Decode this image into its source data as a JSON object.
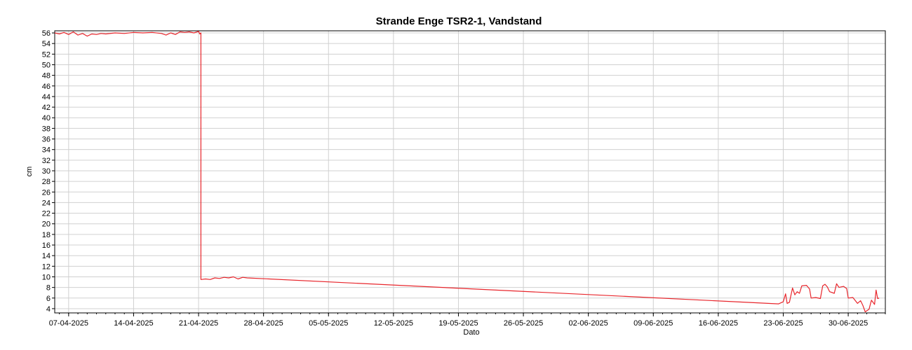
{
  "chart_data": {
    "type": "line",
    "title": "Strande Enge TSR2-1, Vandstand",
    "xlabel": "Dato",
    "ylabel": "cm",
    "x_tick_labels": [
      "07-04-2025",
      "14-04-2025",
      "21-04-2025",
      "28-04-2025",
      "05-05-2025",
      "12-05-2025",
      "19-05-2025",
      "26-05-2025",
      "02-06-2025",
      "09-06-2025",
      "16-06-2025",
      "23-06-2025",
      "30-06-2025"
    ],
    "y_tick_labels": [
      "4",
      "6",
      "8",
      "10",
      "12",
      "14",
      "16",
      "18",
      "20",
      "22",
      "24",
      "26",
      "28",
      "30",
      "32",
      "34",
      "36",
      "38",
      "40",
      "42",
      "44",
      "46",
      "48",
      "50",
      "52",
      "54",
      "56"
    ],
    "ylim": [
      3.2,
      56.4
    ],
    "xlim": [
      "2025-04-05 12:00",
      "2025-07-04 00:00"
    ],
    "grid": true,
    "series": [
      {
        "color": "#e8262c",
        "points": [
          [
            "2025-04-05 12:00",
            56.0
          ],
          [
            "2025-04-06 00:00",
            55.8
          ],
          [
            "2025-04-06 12:00",
            56.1
          ],
          [
            "2025-04-07 00:00",
            55.7
          ],
          [
            "2025-04-07 12:00",
            56.2
          ],
          [
            "2025-04-08 00:00",
            55.6
          ],
          [
            "2025-04-08 12:00",
            55.9
          ],
          [
            "2025-04-09 00:00",
            55.4
          ],
          [
            "2025-04-09 12:00",
            55.8
          ],
          [
            "2025-04-10 00:00",
            55.7
          ],
          [
            "2025-04-10 12:00",
            55.9
          ],
          [
            "2025-04-11 00:00",
            55.8
          ],
          [
            "2025-04-12 00:00",
            56.0
          ],
          [
            "2025-04-13 00:00",
            55.9
          ],
          [
            "2025-04-14 00:00",
            56.1
          ],
          [
            "2025-04-15 00:00",
            56.0
          ],
          [
            "2025-04-16 00:00",
            56.1
          ],
          [
            "2025-04-17 00:00",
            55.9
          ],
          [
            "2025-04-17 12:00",
            55.6
          ],
          [
            "2025-04-18 00:00",
            56.0
          ],
          [
            "2025-04-18 12:00",
            55.7
          ],
          [
            "2025-04-19 00:00",
            56.2
          ],
          [
            "2025-04-19 12:00",
            56.1
          ],
          [
            "2025-04-20 00:00",
            56.2
          ],
          [
            "2025-04-20 12:00",
            56.0
          ],
          [
            "2025-04-21 00:00",
            56.3
          ],
          [
            "2025-04-21 03:00",
            55.8
          ],
          [
            "2025-04-21 06:00",
            56.0
          ],
          [
            "2025-04-21 06:00",
            9.5
          ],
          [
            "2025-04-21 18:00",
            9.6
          ],
          [
            "2025-04-22 06:00",
            9.5
          ],
          [
            "2025-04-22 18:00",
            9.8
          ],
          [
            "2025-04-23 06:00",
            9.7
          ],
          [
            "2025-04-23 18:00",
            9.9
          ],
          [
            "2025-04-24 06:00",
            9.8
          ],
          [
            "2025-04-24 18:00",
            10.0
          ],
          [
            "2025-04-25 06:00",
            9.6
          ],
          [
            "2025-04-25 18:00",
            9.9
          ],
          [
            "2025-04-26 06:00",
            9.8
          ],
          [
            "2025-06-22 12:00",
            4.9
          ],
          [
            "2025-06-23 00:00",
            5.3
          ],
          [
            "2025-06-23 06:00",
            6.8
          ],
          [
            "2025-06-23 10:00",
            5.0
          ],
          [
            "2025-06-23 16:00",
            5.2
          ],
          [
            "2025-06-24 00:00",
            7.9
          ],
          [
            "2025-06-24 06:00",
            6.6
          ],
          [
            "2025-06-24 12:00",
            7.2
          ],
          [
            "2025-06-24 18:00",
            6.9
          ],
          [
            "2025-06-25 00:00",
            8.3
          ],
          [
            "2025-06-25 12:00",
            8.4
          ],
          [
            "2025-06-25 20:00",
            7.7
          ],
          [
            "2025-06-26 00:00",
            6.0
          ],
          [
            "2025-06-26 12:00",
            6.1
          ],
          [
            "2025-06-27 00:00",
            5.9
          ],
          [
            "2025-06-27 06:00",
            8.3
          ],
          [
            "2025-06-27 12:00",
            8.6
          ],
          [
            "2025-06-27 18:00",
            8.1
          ],
          [
            "2025-06-28 00:00",
            7.2
          ],
          [
            "2025-06-28 12:00",
            6.9
          ],
          [
            "2025-06-28 18:00",
            8.7
          ],
          [
            "2025-06-29 00:00",
            8.0
          ],
          [
            "2025-06-29 12:00",
            8.2
          ],
          [
            "2025-06-29 20:00",
            7.8
          ],
          [
            "2025-06-30 00:00",
            6.0
          ],
          [
            "2025-06-30 12:00",
            6.1
          ],
          [
            "2025-07-01 00:00",
            5.0
          ],
          [
            "2025-07-01 08:00",
            5.5
          ],
          [
            "2025-07-01 14:00",
            4.6
          ],
          [
            "2025-07-01 20:00",
            3.4
          ],
          [
            "2025-07-02 06:00",
            3.9
          ],
          [
            "2025-07-02 12:00",
            5.6
          ],
          [
            "2025-07-02 20:00",
            4.8
          ],
          [
            "2025-07-03 00:00",
            7.5
          ],
          [
            "2025-07-03 04:00",
            5.9
          ],
          [
            "2025-07-03 08:00",
            6.0
          ]
        ]
      }
    ]
  }
}
